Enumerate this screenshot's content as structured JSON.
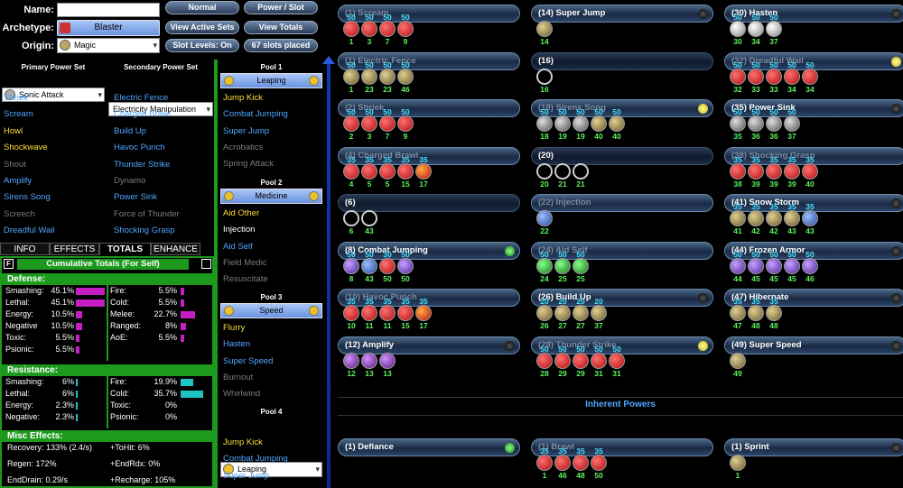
{
  "header": {
    "name_label": "Name:",
    "name_value": "",
    "archetype_label": "Archetype:",
    "archetype_value": "Blaster",
    "origin_label": "Origin:",
    "origin_value": "Magic",
    "buttons": [
      "Normal",
      "Power / Slot",
      "View Active Sets",
      "View Totals",
      "Slot Levels: On",
      "67 slots placed"
    ]
  },
  "primary": {
    "header": "Primary Power Set",
    "selected": "Sonic Attack",
    "items": [
      {
        "label": "Shriek",
        "color": "blue"
      },
      {
        "label": "Scream",
        "color": "blue"
      },
      {
        "label": "Howl",
        "color": "yellow"
      },
      {
        "label": "Shockwave",
        "color": "yellow"
      },
      {
        "label": "Shout",
        "color": "gray"
      },
      {
        "label": "Amplify",
        "color": "blue"
      },
      {
        "label": "Sirens Song",
        "color": "blue"
      },
      {
        "label": "Screech",
        "color": "gray"
      },
      {
        "label": "Dreadful Wail",
        "color": "blue"
      }
    ]
  },
  "secondary": {
    "header": "Secondary Power Set",
    "selected": "Electricity Manipulation",
    "items": [
      {
        "label": "Electric Fence",
        "color": "blue"
      },
      {
        "label": "Charged Brawl",
        "color": "blue"
      },
      {
        "label": "Build Up",
        "color": "blue"
      },
      {
        "label": "Havoc Punch",
        "color": "blue"
      },
      {
        "label": "Thunder Strike",
        "color": "blue"
      },
      {
        "label": "Dynamo",
        "color": "gray"
      },
      {
        "label": "Power Sink",
        "color": "blue"
      },
      {
        "label": "Force of Thunder",
        "color": "gray"
      },
      {
        "label": "Shocking Grasp",
        "color": "blue"
      }
    ]
  },
  "pools": [
    {
      "header": "Pool 1",
      "selected": "Leaping",
      "items": [
        {
          "label": "Jump Kick",
          "color": "yellow"
        },
        {
          "label": "Combat Jumping",
          "color": "blue"
        },
        {
          "label": "Super Jump",
          "color": "blue"
        },
        {
          "label": "Acrobatics",
          "color": "gray"
        },
        {
          "label": "Spring Attack",
          "color": "gray"
        }
      ]
    },
    {
      "header": "Pool 2",
      "selected": "Medicine",
      "items": [
        {
          "label": "Aid Other",
          "color": "yellow"
        },
        {
          "label": "Injection",
          "color": "white"
        },
        {
          "label": "Aid Self",
          "color": "blue"
        },
        {
          "label": "Field Medic",
          "color": "gray"
        },
        {
          "label": "Resuscitate",
          "color": "gray"
        }
      ]
    },
    {
      "header": "Pool 3",
      "selected": "Speed",
      "items": [
        {
          "label": "Flurry",
          "color": "yellow"
        },
        {
          "label": "Hasten",
          "color": "blue"
        },
        {
          "label": "Super Speed",
          "color": "blue"
        },
        {
          "label": "Burnout",
          "color": "gray"
        },
        {
          "label": "Whirlwind",
          "color": "gray"
        }
      ]
    },
    {
      "header": "Pool 4",
      "selected": "Leaping",
      "items": [
        {
          "label": "Jump Kick",
          "color": "yellow"
        },
        {
          "label": "Combat Jumping",
          "color": "blue"
        },
        {
          "label": "Super Jump",
          "color": "blue"
        }
      ]
    }
  ],
  "tabs": [
    "INFO",
    "EFFECTS",
    "TOTALS",
    "ENHANCE"
  ],
  "totals": {
    "f_label": "F",
    "title": "Cumulative Totals (For Self)",
    "defense_header": "Defense:",
    "defense_left": [
      {
        "label": "Smashing:",
        "value": "45.1%",
        "pct": 0.45
      },
      {
        "label": "Lethal:",
        "value": "45.1%",
        "pct": 0.45
      },
      {
        "label": "Energy:",
        "value": "10.5%",
        "pct": 0.105
      },
      {
        "label": "Negative",
        "value": "10.5%",
        "pct": 0.105
      },
      {
        "label": "Toxic:",
        "value": "5.5%",
        "pct": 0.055
      },
      {
        "label": "Psionic:",
        "value": "5.5%",
        "pct": 0.055
      }
    ],
    "defense_right": [
      {
        "label": "Fire:",
        "value": "5.5%",
        "pct": 0.055
      },
      {
        "label": "Cold:",
        "value": "5.5%",
        "pct": 0.055
      },
      {
        "label": "Melee:",
        "value": "22.7%",
        "pct": 0.227
      },
      {
        "label": "Ranged:",
        "value": "8%",
        "pct": 0.08
      },
      {
        "label": "AoE:",
        "value": "5.5%",
        "pct": 0.055
      }
    ],
    "resistance_header": "Resistance:",
    "res_left": [
      {
        "label": "Smashing:",
        "value": "6%",
        "pct": 0.06
      },
      {
        "label": "Lethal:",
        "value": "6%",
        "pct": 0.06
      },
      {
        "label": "Energy:",
        "value": "2.3%",
        "pct": 0.023
      },
      {
        "label": "Negative:",
        "value": "2.3%",
        "pct": 0.023
      }
    ],
    "res_right": [
      {
        "label": "Fire:",
        "value": "19.9%",
        "pct": 0.199
      },
      {
        "label": "Cold:",
        "value": "35.7%",
        "pct": 0.357
      },
      {
        "label": "Toxic:",
        "value": "0%",
        "pct": 0
      },
      {
        "label": "Psionic:",
        "value": "0%",
        "pct": 0
      }
    ],
    "misc_header": "Misc Effects:",
    "misc": [
      "Recovery: 133% (2.4/s)",
      "+ToHit: 6%",
      "Regen: 172%",
      "+EndRdx: 0%",
      "EndDrain: 0.29/s",
      "+Recharge: 105%"
    ]
  },
  "inherent_header": "Inherent Powers",
  "powers": [
    {
      "name": "(1) Scream",
      "col": 0,
      "row": 0,
      "dim": true,
      "dot": "none",
      "slots": [
        {
          "t": "50",
          "l": "1",
          "c": "red"
        },
        {
          "t": "50",
          "l": "3",
          "c": "red"
        },
        {
          "t": "50",
          "l": "7",
          "c": "red"
        },
        {
          "t": "50",
          "l": "9",
          "c": "red"
        }
      ]
    },
    {
      "name": "(1) Electric Fence",
      "col": 0,
      "row": 1,
      "dim": true,
      "dot": "none",
      "slots": [
        {
          "t": "50",
          "l": "1",
          "c": "tan"
        },
        {
          "t": "50",
          "l": "23",
          "c": "tan"
        },
        {
          "t": "50",
          "l": "23",
          "c": "tan"
        },
        {
          "t": "50",
          "l": "46",
          "c": "tan"
        }
      ]
    },
    {
      "name": "(2) Shriek",
      "col": 0,
      "row": 2,
      "dim": true,
      "dot": "none",
      "slots": [
        {
          "t": "50",
          "l": "2",
          "c": "red"
        },
        {
          "t": "50",
          "l": "3",
          "c": "red"
        },
        {
          "t": "50",
          "l": "7",
          "c": "red"
        },
        {
          "t": "50",
          "l": "9",
          "c": "red"
        }
      ]
    },
    {
      "name": "(4) Charged Brawl",
      "col": 0,
      "row": 3,
      "dim": true,
      "dot": "none",
      "slots": [
        {
          "t": "35",
          "l": "4",
          "c": "red"
        },
        {
          "t": "35",
          "l": "5",
          "c": "red"
        },
        {
          "t": "35",
          "l": "5",
          "c": "red"
        },
        {
          "t": "35",
          "l": "15",
          "c": "red"
        },
        {
          "t": "35",
          "l": "17",
          "c": "redgold"
        }
      ]
    },
    {
      "name": "(6)",
      "col": 0,
      "row": 4,
      "dim": false,
      "dot": "none",
      "empty": true,
      "slots": [
        {
          "t": "",
          "l": "6",
          "c": "empty"
        },
        {
          "t": "",
          "l": "43",
          "c": "empty"
        }
      ]
    },
    {
      "name": "(8) Combat Jumping",
      "col": 0,
      "row": 5,
      "dim": false,
      "dot": "green",
      "slots": [
        {
          "t": "50",
          "l": "8",
          "c": "purple"
        },
        {
          "t": "50",
          "l": "43",
          "c": "blue"
        },
        {
          "t": "30",
          "l": "50",
          "c": "red"
        },
        {
          "t": "50",
          "l": "50",
          "c": "purple"
        }
      ]
    },
    {
      "name": "(10) Havoc Punch",
      "col": 0,
      "row": 6,
      "dim": true,
      "dot": "none",
      "slots": [
        {
          "t": "35",
          "l": "10",
          "c": "red"
        },
        {
          "t": "35",
          "l": "11",
          "c": "red"
        },
        {
          "t": "35",
          "l": "11",
          "c": "red"
        },
        {
          "t": "35",
          "l": "15",
          "c": "red"
        },
        {
          "t": "35",
          "l": "17",
          "c": "redgold"
        }
      ]
    },
    {
      "name": "(12) Amplify",
      "col": 0,
      "row": 7,
      "dim": false,
      "dot": "black",
      "slots": [
        {
          "t": "",
          "l": "12",
          "c": "violet"
        },
        {
          "t": "",
          "l": "13",
          "c": "violet"
        },
        {
          "t": "",
          "l": "13",
          "c": "violet"
        }
      ]
    },
    {
      "name": "(14) Super Jump",
      "col": 1,
      "row": 0,
      "dim": false,
      "dot": "black",
      "slots": [
        {
          "t": "",
          "l": "14",
          "c": "tan"
        }
      ]
    },
    {
      "name": "(16)",
      "col": 1,
      "row": 1,
      "dim": false,
      "dot": "none",
      "empty": true,
      "slots": [
        {
          "t": "",
          "l": "16",
          "c": "empty"
        }
      ]
    },
    {
      "name": "(18) Sirens Song",
      "col": 1,
      "row": 2,
      "dim": true,
      "dot": "yellow",
      "slots": [
        {
          "t": "50",
          "l": "18",
          "c": "gray"
        },
        {
          "t": "50",
          "l": "19",
          "c": "gray"
        },
        {
          "t": "50",
          "l": "19",
          "c": "gray"
        },
        {
          "t": "50",
          "l": "40",
          "c": "tan"
        },
        {
          "t": "50",
          "l": "40",
          "c": "tan"
        }
      ]
    },
    {
      "name": "(20)",
      "col": 1,
      "row": 3,
      "dim": false,
      "dot": "none",
      "empty": true,
      "slots": [
        {
          "t": "",
          "l": "20",
          "c": "empty"
        },
        {
          "t": "",
          "l": "21",
          "c": "empty"
        },
        {
          "t": "",
          "l": "21",
          "c": "empty"
        }
      ]
    },
    {
      "name": "(22) Injection",
      "col": 1,
      "row": 4,
      "dim": true,
      "dot": "none",
      "slots": [
        {
          "t": "",
          "l": "22",
          "c": "blue"
        }
      ]
    },
    {
      "name": "(24) Aid Self",
      "col": 1,
      "row": 5,
      "dim": true,
      "dot": "none",
      "slots": [
        {
          "t": "50",
          "l": "24",
          "c": "green"
        },
        {
          "t": "50",
          "l": "25",
          "c": "green"
        },
        {
          "t": "50",
          "l": "25",
          "c": "green"
        }
      ]
    },
    {
      "name": "(26) Build Up",
      "col": 1,
      "row": 6,
      "dim": false,
      "dot": "black",
      "slots": [
        {
          "t": "20",
          "l": "26",
          "c": "tan"
        },
        {
          "t": "20",
          "l": "27",
          "c": "tan"
        },
        {
          "t": "20",
          "l": "27",
          "c": "tan"
        },
        {
          "t": "20",
          "l": "37",
          "c": "tan"
        }
      ]
    },
    {
      "name": "(28) Thunder Strike",
      "col": 1,
      "row": 7,
      "dim": true,
      "dot": "yellow",
      "slots": [
        {
          "t": "50",
          "l": "28",
          "c": "red"
        },
        {
          "t": "50",
          "l": "29",
          "c": "red"
        },
        {
          "t": "50",
          "l": "29",
          "c": "red"
        },
        {
          "t": "50",
          "l": "31",
          "c": "red"
        },
        {
          "t": "50",
          "l": "31",
          "c": "red"
        }
      ]
    },
    {
      "name": "(30) Hasten",
      "col": 2,
      "row": 0,
      "dim": false,
      "dot": "black",
      "slots": [
        {
          "t": "50",
          "l": "30",
          "c": "silver"
        },
        {
          "t": "50",
          "l": "34",
          "c": "silver"
        },
        {
          "t": "50",
          "l": "37",
          "c": "silver"
        }
      ]
    },
    {
      "name": "(32) Dreadful Wail",
      "col": 2,
      "row": 1,
      "dim": true,
      "dot": "yellow",
      "slots": [
        {
          "t": "50",
          "l": "32",
          "c": "red"
        },
        {
          "t": "50",
          "l": "33",
          "c": "red"
        },
        {
          "t": "50",
          "l": "33",
          "c": "red"
        },
        {
          "t": "50",
          "l": "34",
          "c": "red"
        },
        {
          "t": "50",
          "l": "34",
          "c": "red"
        }
      ]
    },
    {
      "name": "(35) Power Sink",
      "col": 2,
      "row": 2,
      "dim": false,
      "dot": "black",
      "slots": [
        {
          "t": "50",
          "l": "35",
          "c": "gray"
        },
        {
          "t": "50",
          "l": "36",
          "c": "gray"
        },
        {
          "t": "50",
          "l": "36",
          "c": "gray"
        },
        {
          "t": "50",
          "l": "37",
          "c": "gray"
        }
      ]
    },
    {
      "name": "(38) Shocking Grasp",
      "col": 2,
      "row": 3,
      "dim": true,
      "dot": "none",
      "slots": [
        {
          "t": "35",
          "l": "38",
          "c": "red"
        },
        {
          "t": "35",
          "l": "39",
          "c": "red"
        },
        {
          "t": "35",
          "l": "39",
          "c": "red"
        },
        {
          "t": "35",
          "l": "39",
          "c": "red"
        },
        {
          "t": "35",
          "l": "40",
          "c": "red"
        }
      ]
    },
    {
      "name": "(41) Snow Storm",
      "col": 2,
      "row": 4,
      "dim": false,
      "dot": "black",
      "slots": [
        {
          "t": "35",
          "l": "41",
          "c": "tan"
        },
        {
          "t": "35",
          "l": "42",
          "c": "tan"
        },
        {
          "t": "35",
          "l": "42",
          "c": "tan"
        },
        {
          "t": "35",
          "l": "43",
          "c": "tan"
        },
        {
          "t": "35",
          "l": "43",
          "c": "blue"
        }
      ]
    },
    {
      "name": "(44) Frozen Armor",
      "col": 2,
      "row": 5,
      "dim": false,
      "dot": "black",
      "slots": [
        {
          "t": "50",
          "l": "44",
          "c": "purple"
        },
        {
          "t": "50",
          "l": "45",
          "c": "purple"
        },
        {
          "t": "50",
          "l": "45",
          "c": "purple"
        },
        {
          "t": "50",
          "l": "45",
          "c": "purple"
        },
        {
          "t": "50",
          "l": "46",
          "c": "purple"
        }
      ]
    },
    {
      "name": "(47) Hibernate",
      "col": 2,
      "row": 6,
      "dim": false,
      "dot": "black",
      "slots": [
        {
          "t": "35",
          "l": "47",
          "c": "tan"
        },
        {
          "t": "35",
          "l": "48",
          "c": "tan"
        },
        {
          "t": "35",
          "l": "48",
          "c": "tan"
        }
      ]
    },
    {
      "name": "(49) Super Speed",
      "col": 2,
      "row": 7,
      "dim": false,
      "dot": "black",
      "slots": [
        {
          "t": "",
          "l": "49",
          "c": "tan"
        }
      ]
    },
    {
      "name": "(1) Defiance",
      "col": 0,
      "row": 9,
      "dim": false,
      "dot": "green",
      "slots": []
    },
    {
      "name": "(1) Brawl",
      "col": 1,
      "row": 9,
      "dim": true,
      "dot": "none",
      "slots": [
        {
          "t": "35",
          "l": "1",
          "c": "red"
        },
        {
          "t": "35",
          "l": "46",
          "c": "red"
        },
        {
          "t": "35",
          "l": "48",
          "c": "red"
        },
        {
          "t": "35",
          "l": "50",
          "c": "red"
        }
      ]
    },
    {
      "name": "(1) Sprint",
      "col": 2,
      "row": 9,
      "dim": false,
      "dot": "black",
      "slots": [
        {
          "t": "",
          "l": "1",
          "c": "tan"
        }
      ]
    }
  ]
}
